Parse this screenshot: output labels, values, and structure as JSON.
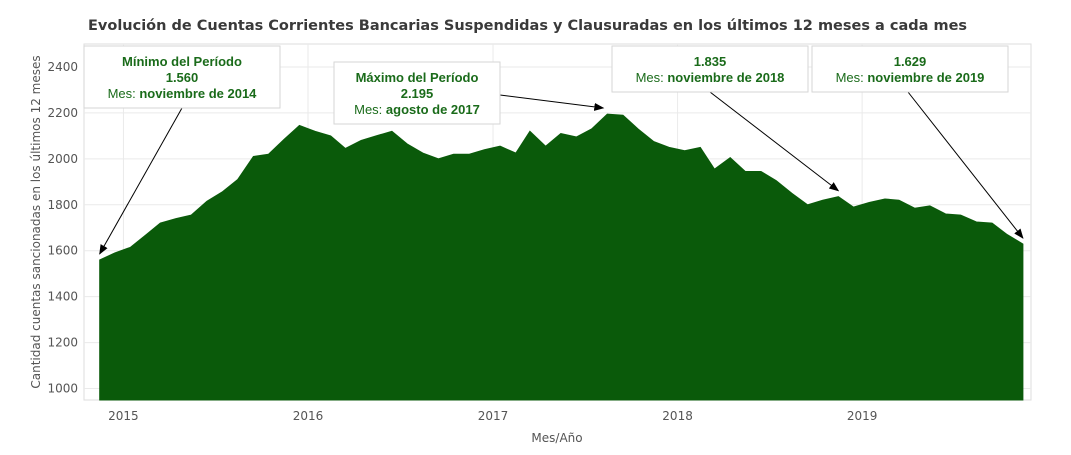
{
  "chart_data": {
    "type": "area",
    "title": "Evolución de Cuentas Corrientes Bancarias Suspendidas y Clausuradas en los últimos 12 meses a cada mes",
    "xlabel": "Mes/Año",
    "ylabel": "Cantidad cuentas sancionadas en los últimos 12 meses",
    "x_ticks": [
      "2015",
      "2016",
      "2017",
      "2018",
      "2019"
    ],
    "y_ticks": [
      1000,
      1200,
      1400,
      1600,
      1800,
      2000,
      2200,
      2400
    ],
    "ylim": [
      950,
      2500
    ],
    "xlim": [
      "2014-10-15",
      "2019-12-01"
    ],
    "grid": true,
    "fill_color": "#0a5a0a",
    "x": [
      "2014-11",
      "2014-12",
      "2015-01",
      "2015-02",
      "2015-03",
      "2015-04",
      "2015-05",
      "2015-06",
      "2015-07",
      "2015-08",
      "2015-09",
      "2015-10",
      "2015-11",
      "2015-12",
      "2016-01",
      "2016-02",
      "2016-03",
      "2016-04",
      "2016-05",
      "2016-06",
      "2016-07",
      "2016-08",
      "2016-09",
      "2016-10",
      "2016-11",
      "2016-12",
      "2017-01",
      "2017-02",
      "2017-03",
      "2017-04",
      "2017-05",
      "2017-06",
      "2017-07",
      "2017-08",
      "2017-09",
      "2017-10",
      "2017-11",
      "2017-12",
      "2018-01",
      "2018-02",
      "2018-03",
      "2018-04",
      "2018-05",
      "2018-06",
      "2018-07",
      "2018-08",
      "2018-09",
      "2018-10",
      "2018-11",
      "2018-12",
      "2019-01",
      "2019-02",
      "2019-03",
      "2019-04",
      "2019-05",
      "2019-06",
      "2019-07",
      "2019-08",
      "2019-09",
      "2019-10",
      "2019-11"
    ],
    "values": [
      1560,
      1590,
      1615,
      1670,
      1720,
      1740,
      1755,
      1815,
      1855,
      1910,
      2010,
      2020,
      2085,
      2145,
      2120,
      2100,
      2045,
      2080,
      2100,
      2120,
      2065,
      2025,
      2000,
      2020,
      2020,
      2040,
      2055,
      2025,
      2120,
      2055,
      2110,
      2095,
      2130,
      2195,
      2190,
      2130,
      2075,
      2050,
      2035,
      2050,
      1955,
      2005,
      1945,
      1945,
      1905,
      1850,
      1800,
      1820,
      1835,
      1790,
      1810,
      1825,
      1820,
      1785,
      1795,
      1760,
      1755,
      1725,
      1720,
      1670,
      1629
    ],
    "annotations": [
      {
        "lines": [
          "Mínimo del Período",
          "1.560",
          "Mes: noviembre de 2014"
        ],
        "target": {
          "x": "2014-11",
          "y": 1560
        }
      },
      {
        "lines": [
          "Máximo del Período",
          "2.195",
          "Mes: agosto de 2017"
        ],
        "target": {
          "x": "2017-08",
          "y": 2195
        }
      },
      {
        "lines": [
          "1.835",
          "Mes: noviembre de 2018"
        ],
        "target": {
          "x": "2018-11",
          "y": 1835
        }
      },
      {
        "lines": [
          "1.629",
          "Mes: noviembre de 2019"
        ],
        "target": {
          "x": "2019-11",
          "y": 1629
        }
      }
    ]
  }
}
